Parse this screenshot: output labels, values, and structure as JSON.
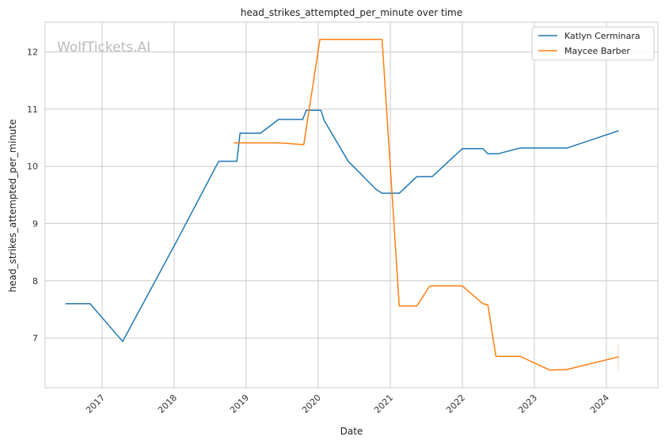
{
  "chart_data": {
    "type": "line",
    "title": "head_strikes_attempted_per_minute over time",
    "xlabel": "Date",
    "ylabel": "head_strikes_attempted_per_minute",
    "watermark": "WolfTickets.AI",
    "x_axis_type": "date",
    "xlim": [
      "2016-03-18",
      "2024-09-18"
    ],
    "ylim": [
      6.13,
      12.52
    ],
    "xticks": [
      "2017-01-01",
      "2018-01-01",
      "2019-01-01",
      "2020-01-01",
      "2021-01-01",
      "2022-01-01",
      "2023-01-01",
      "2024-01-01"
    ],
    "xtick_labels": [
      "2017",
      "2018",
      "2019",
      "2020",
      "2021",
      "2022",
      "2023",
      "2024"
    ],
    "yticks": [
      7,
      8,
      9,
      10,
      11,
      12
    ],
    "ytick_labels": [
      "7",
      "8",
      "9",
      "10",
      "11",
      "12"
    ],
    "grid": true,
    "legend_position": "top-right",
    "series": [
      {
        "name": "Katlyn Cerminara",
        "color": "#1f77b4",
        "points": [
          [
            "2016-07-01",
            7.6
          ],
          [
            "2016-11-01",
            7.6
          ],
          [
            "2017-04-15",
            6.94
          ],
          [
            "2018-01-15",
            8.7
          ],
          [
            "2018-08-15",
            10.09
          ],
          [
            "2018-11-15",
            10.09
          ],
          [
            "2018-12-01",
            10.58
          ],
          [
            "2019-03-15",
            10.58
          ],
          [
            "2019-06-15",
            10.82
          ],
          [
            "2019-10-15",
            10.82
          ],
          [
            "2019-11-01",
            10.98
          ],
          [
            "2020-01-15",
            10.98
          ],
          [
            "2020-02-01",
            10.8
          ],
          [
            "2020-06-01",
            10.09
          ],
          [
            "2020-10-20",
            9.6
          ],
          [
            "2020-11-20",
            9.53
          ],
          [
            "2021-02-15",
            9.53
          ],
          [
            "2021-05-15",
            9.82
          ],
          [
            "2021-08-01",
            9.82
          ],
          [
            "2022-01-01",
            10.31
          ],
          [
            "2022-04-15",
            10.31
          ],
          [
            "2022-05-10",
            10.22
          ],
          [
            "2022-07-01",
            10.22
          ],
          [
            "2022-10-20",
            10.32
          ],
          [
            "2023-06-15",
            10.32
          ],
          [
            "2024-03-01",
            10.62
          ]
        ]
      },
      {
        "name": "Maycee Barber",
        "color": "#ff7f0e",
        "points": [
          [
            "2018-11-01",
            10.41
          ],
          [
            "2019-06-15",
            10.41
          ],
          [
            "2019-10-20",
            10.38
          ],
          [
            "2020-01-10",
            12.22
          ],
          [
            "2020-11-20",
            12.22
          ],
          [
            "2021-02-15",
            7.56
          ],
          [
            "2021-05-15",
            7.56
          ],
          [
            "2021-07-20",
            7.91
          ],
          [
            "2022-01-01",
            7.91
          ],
          [
            "2022-04-15",
            7.6
          ],
          [
            "2022-05-10",
            7.58
          ],
          [
            "2022-06-20",
            6.68
          ],
          [
            "2022-10-20",
            6.68
          ],
          [
            "2023-03-20",
            6.44
          ],
          [
            "2023-06-15",
            6.45
          ],
          [
            "2024-03-01",
            6.67
          ]
        ],
        "end_marker": {
          "date": "2024-03-01",
          "low": 6.44,
          "high": 6.89
        }
      }
    ]
  }
}
